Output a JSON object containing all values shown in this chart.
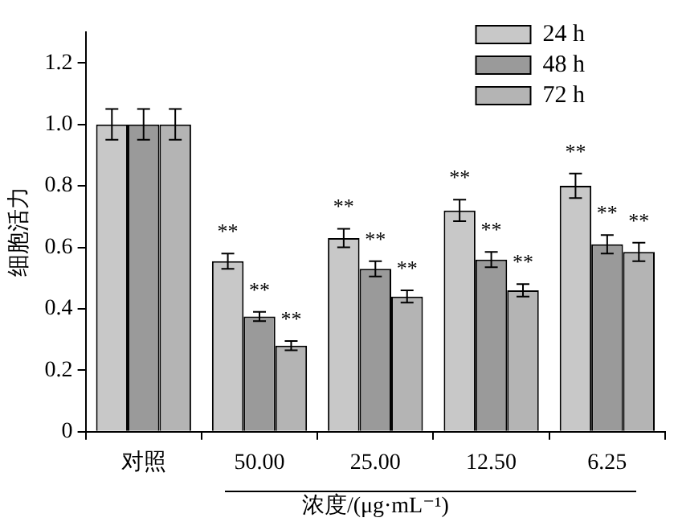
{
  "chart_data": {
    "type": "bar",
    "ylabel": "细胞活力",
    "xlabel": "浓度/(μg·mL⁻¹)",
    "categories": [
      "对照",
      "50.00",
      "25.00",
      "12.50",
      "6.25"
    ],
    "series": [
      {
        "name": "24 h",
        "color": "#c8c8c8",
        "values": [
          1.0,
          0.555,
          0.63,
          0.72,
          0.8
        ],
        "errors": [
          0.05,
          0.025,
          0.03,
          0.035,
          0.04
        ]
      },
      {
        "name": "48 h",
        "color": "#9a9a9a",
        "values": [
          1.0,
          0.375,
          0.53,
          0.56,
          0.61
        ],
        "errors": [
          0.05,
          0.015,
          0.025,
          0.025,
          0.03
        ]
      },
      {
        "name": "72 h",
        "color": "#b4b4b4",
        "values": [
          1.0,
          0.28,
          0.44,
          0.46,
          0.585
        ],
        "errors": [
          0.05,
          0.015,
          0.02,
          0.02,
          0.03
        ]
      }
    ],
    "ylim": [
      0,
      1.3
    ],
    "yticks": [
      0,
      0.2,
      0.4,
      0.6,
      0.8,
      {
        "value": 1,
        "label": "1.0"
      },
      1.2
    ],
    "annotations": [
      "**",
      "**",
      "**",
      "**",
      "**",
      "**",
      "**",
      "**",
      "**",
      "**",
      "**",
      "**"
    ],
    "grid": false,
    "legend": "top right"
  }
}
